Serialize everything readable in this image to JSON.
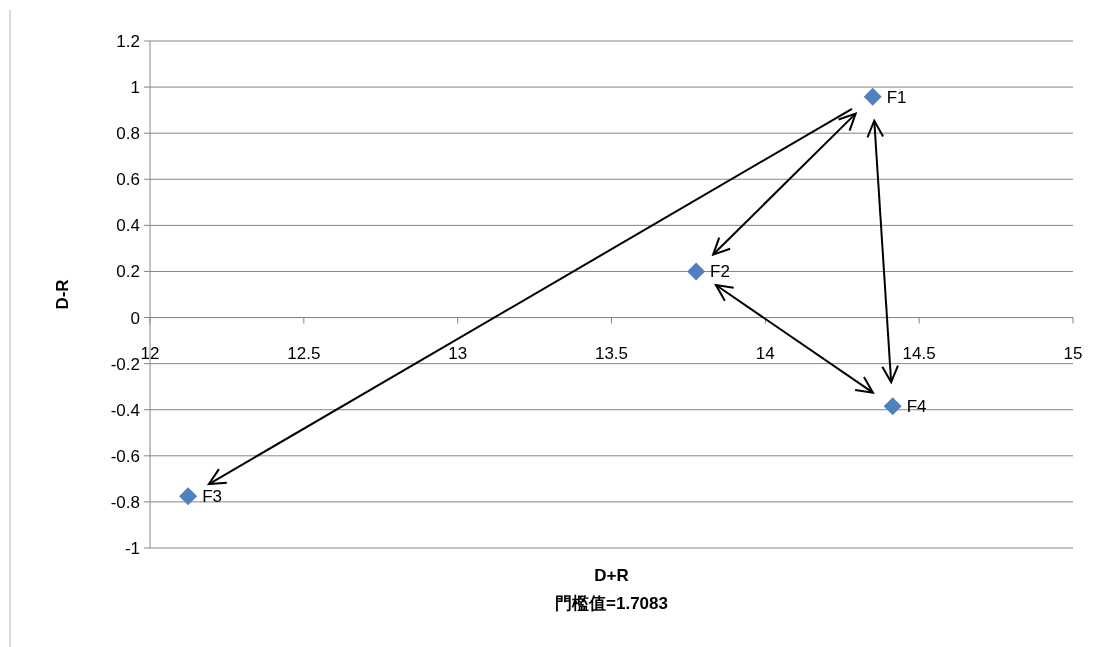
{
  "chart_data": {
    "type": "scatter",
    "xlabel": "D+R",
    "ylabel": "D-R",
    "annotations": [
      "門檻值=1.7083"
    ],
    "series": [
      {
        "name": "F1",
        "color": "#4f81bd",
        "x": [
          14.349
        ],
        "values": [
          0.958
        ]
      },
      {
        "name": "F2",
        "color": "#4f81bd",
        "x": [
          13.775
        ],
        "values": [
          0.2
        ]
      },
      {
        "name": "F3",
        "color": "#4f81bd",
        "x": [
          12.124
        ],
        "values": [
          -0.775
        ]
      },
      {
        "name": "F4",
        "color": "#4f81bd",
        "x": [
          14.414
        ],
        "values": [
          -0.385
        ]
      }
    ],
    "xlim": [
      12,
      15
    ],
    "xticks": [
      12,
      12.5,
      13,
      13.5,
      14,
      14.5,
      15
    ],
    "ylim": [
      -1,
      1.2
    ],
    "yticks": [
      -1,
      -0.8,
      -0.6,
      -0.4,
      -0.2,
      0,
      0.2,
      0.4,
      0.6,
      0.8,
      1,
      1.2
    ],
    "grid": "y",
    "marker": "diamond"
  }
}
